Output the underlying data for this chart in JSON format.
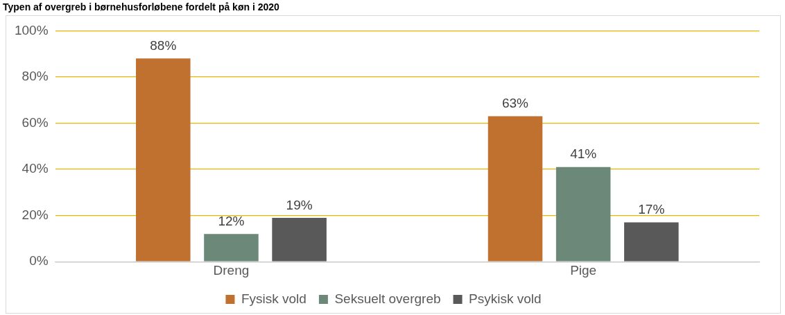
{
  "chart_data": {
    "type": "bar",
    "title": "Typen af overgreb i børnehusforløbene fordelt på køn i 2020",
    "categories": [
      "Dreng",
      "Pige"
    ],
    "series": [
      {
        "name": "Fysisk vold",
        "color": "#c0702f",
        "values": [
          88,
          63
        ],
        "value_labels": [
          "88%",
          "63%"
        ]
      },
      {
        "name": "Seksuelt overgreb",
        "color": "#6b8878",
        "values": [
          12,
          41
        ],
        "value_labels": [
          "12%",
          "41%"
        ]
      },
      {
        "name": "Psykisk vold",
        "color": "#595959",
        "values": [
          19,
          17
        ],
        "value_labels": [
          "19%",
          "17%"
        ]
      }
    ],
    "ylim": [
      0,
      100
    ],
    "yticks": [
      {
        "value": 0,
        "label": "0%"
      },
      {
        "value": 20,
        "label": "20%"
      },
      {
        "value": 40,
        "label": "40%"
      },
      {
        "value": 60,
        "label": "60%"
      },
      {
        "value": 80,
        "label": "80%"
      },
      {
        "value": 100,
        "label": "100%"
      }
    ],
    "grid": "y",
    "legend": "bottom"
  }
}
